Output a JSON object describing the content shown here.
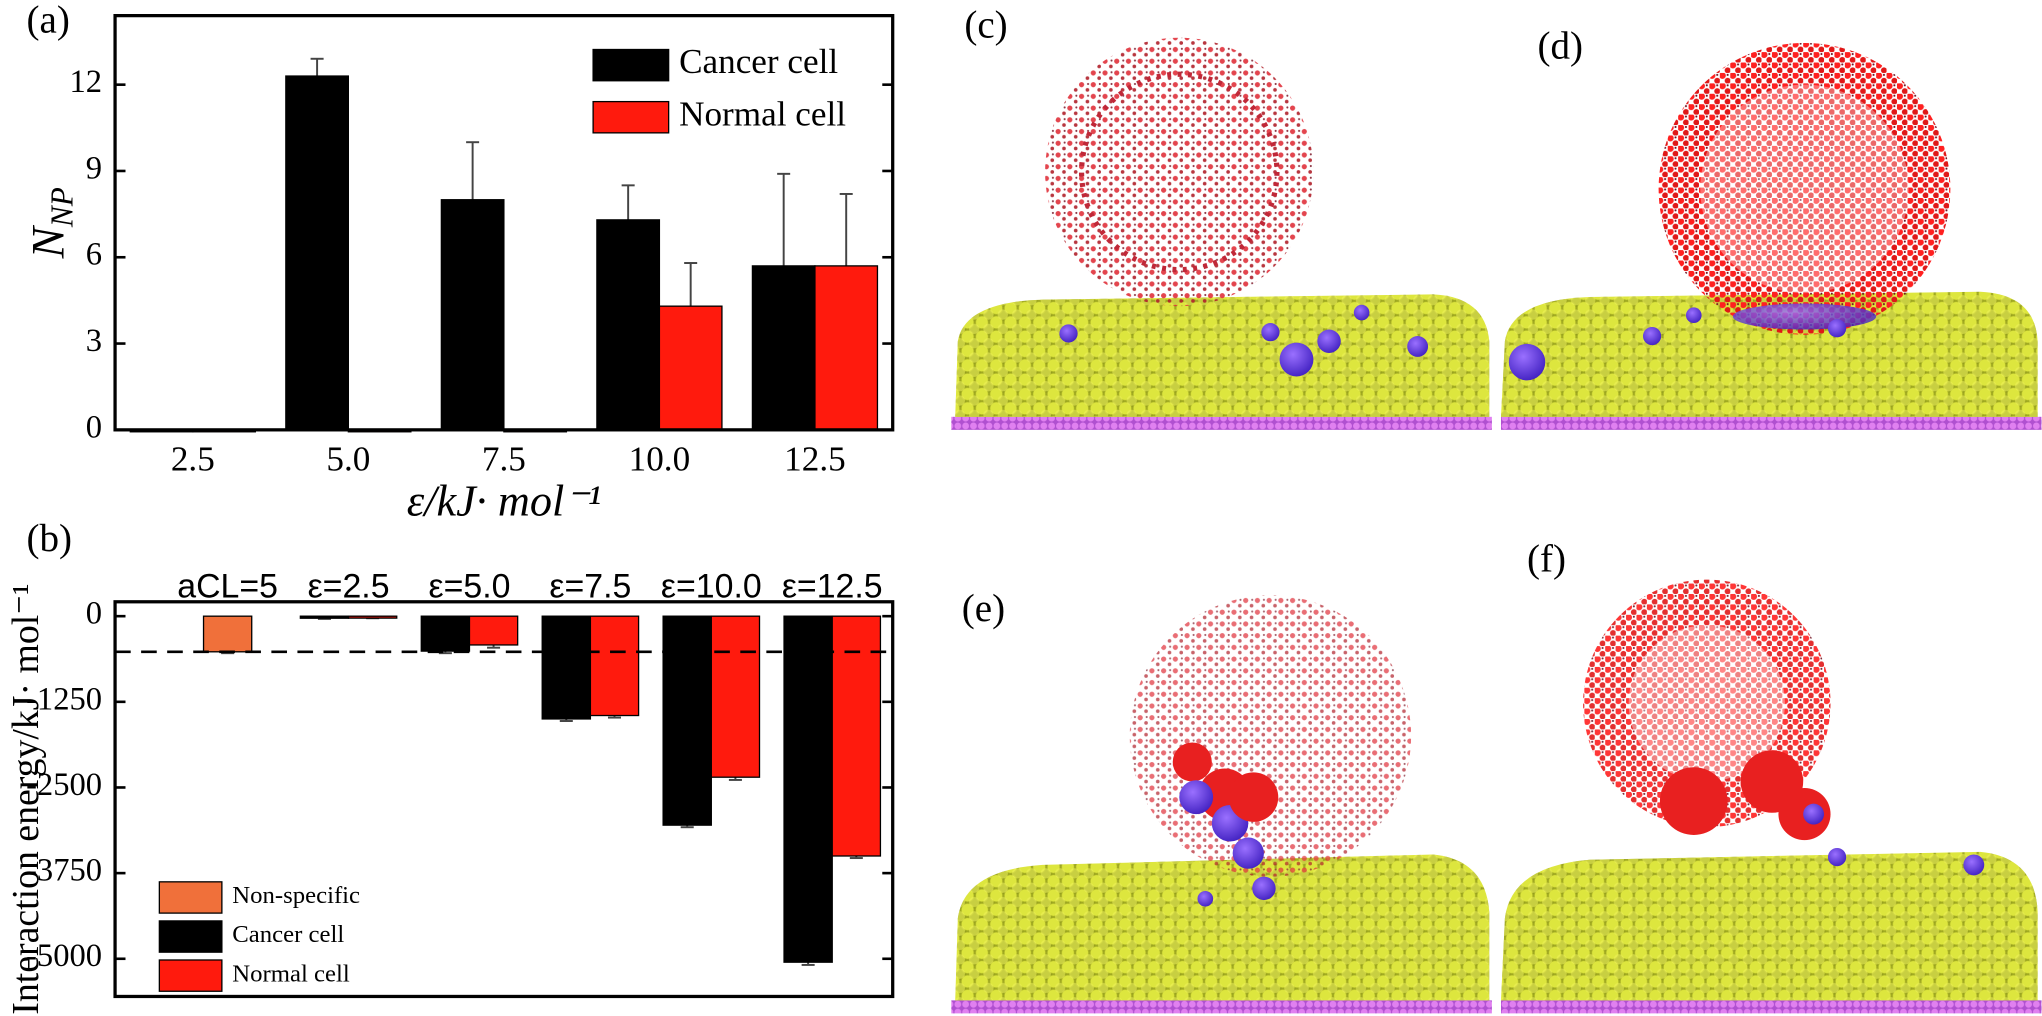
{
  "chart_data": [
    {
      "type": "bar",
      "panel_label": "(a)",
      "ylabel": "N",
      "ylabel_subscript": "NP",
      "xlabel": "ε/kJ· mol⁻¹",
      "categories": [
        "2.5",
        "5.0",
        "7.5",
        "10.0",
        "12.5"
      ],
      "series": [
        {
          "name": "Cancer cell",
          "color": "#000000",
          "values": [
            0,
            12.3,
            8.0,
            7.3,
            5.7
          ],
          "errors": [
            0,
            0.6,
            2.0,
            1.2,
            3.2
          ]
        },
        {
          "name": "Normal cell",
          "color": "#ff1a0d",
          "values": [
            0,
            0,
            0,
            4.3,
            5.7
          ],
          "errors": [
            0,
            0,
            0,
            1.5,
            2.5
          ]
        }
      ],
      "ylim": [
        0,
        14.4
      ],
      "yticks": [
        0,
        3,
        6,
        9,
        12
      ],
      "grid": false,
      "legend": "upper right"
    },
    {
      "type": "bar",
      "panel_label": "(b)",
      "ylabel": "Interaction energy/kJ· mol⁻¹",
      "categories": [
        "aCL=5",
        "ε=2.5",
        "ε=5.0",
        "ε=7.5",
        "ε=10.0",
        "ε=12.5"
      ],
      "series": [
        {
          "name": "Non-specific",
          "color": "#f0703a",
          "values": [
            -520,
            null,
            null,
            null,
            null,
            null
          ],
          "errors": [
            20,
            null,
            null,
            null,
            null,
            null
          ]
        },
        {
          "name": "Cancer cell",
          "color": "#000000",
          "values": [
            null,
            -30,
            -510,
            -1500,
            -3050,
            -5050
          ],
          "errors": [
            null,
            10,
            30,
            30,
            30,
            40
          ]
        },
        {
          "name": "Normal cell",
          "color": "#ff1a0d",
          "values": [
            null,
            -20,
            -420,
            -1450,
            -2350,
            -3500
          ],
          "errors": [
            null,
            10,
            40,
            30,
            40,
            30
          ]
        }
      ],
      "hline": -520,
      "ylim": [
        -5550,
        210
      ],
      "yticks": [
        0,
        -1250,
        -2500,
        -3750,
        -5000
      ],
      "grid": false,
      "legend": "lower left"
    }
  ],
  "images": [
    {
      "label": "(c)"
    },
    {
      "label": "(d)"
    },
    {
      "label": "(e)"
    },
    {
      "label": "(f)"
    }
  ]
}
